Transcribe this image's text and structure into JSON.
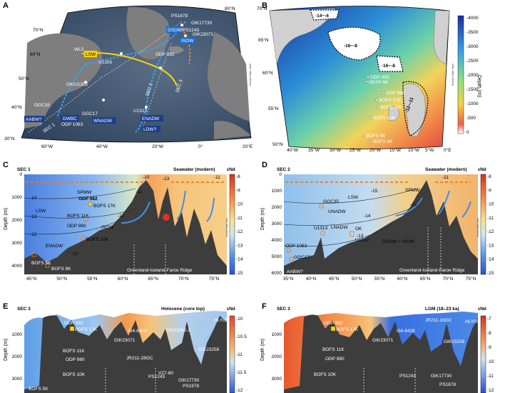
{
  "panels": {
    "A": {
      "letter": "A",
      "lat_labels": [
        "80°N",
        "70°N",
        "60°N",
        "50°N",
        "40°N",
        "30°N"
      ],
      "lon_labels": [
        "60°W",
        "40°W",
        "20°W",
        "0°",
        "20°E"
      ],
      "core_labels": [
        "PS1878",
        "GIK17730",
        "PS1243",
        "GIK23071",
        "ISOW",
        "DSOW",
        "LSW",
        "ODP 982",
        "U1305",
        "OK/U1302",
        "SEC 2",
        "SEC 3",
        "SEC 1",
        "GGC35",
        "DWBC",
        "GGC17",
        "ODP 1063",
        "U1313",
        "WNADW",
        "ENADW",
        "AABW?",
        "LDW?",
        "WL5"
      ],
      "credit": "Ocean Data View"
    },
    "B": {
      "letter": "B",
      "lat_labels": [
        "70°N",
        "65°N",
        "60°N",
        "55°N",
        "50°N"
      ],
      "lon_labels": [
        "40°W",
        "35°W",
        "30°W",
        "25°W",
        "20°W",
        "15°W",
        "10°W",
        "5°W",
        "0°E"
      ],
      "zone_labels": [
        "-14~-6",
        "-16~-8",
        "-16~-8",
        "-12~-11"
      ],
      "core_labels": [
        "ODP 983",
        "NEAP 8K",
        "ODP 980",
        "BOFS 17K",
        "BOFS 11K",
        "BOFS 10K",
        "BOFS 5K",
        "BOFS 8K"
      ],
      "colorbar_title": "Depth (m)",
      "colorbar_ticks": [
        "0",
        "-500",
        "-1000",
        "-1500",
        "-2000",
        "-2500",
        "-3000",
        "-3500",
        "-4000"
      ],
      "credit": "Ocean Data View"
    },
    "C": {
      "letter": "C",
      "title_left": "SEC 1",
      "title_right": "Seawater (modern)",
      "colorbar_label": "εNd",
      "colorbar_ticks": [
        "-8",
        "-9",
        "-10",
        "-11",
        "-12",
        "-13",
        "-14",
        "-15"
      ],
      "y_ticks": [
        "0",
        "1000",
        "2000",
        "3000",
        "4000"
      ],
      "x_ticks": [
        "45°N",
        "50°N",
        "55°N",
        "60°N",
        "65°N",
        "70°N",
        "75°N"
      ],
      "ylabel": "Depth (m)",
      "labels": [
        "SPMW",
        "ODP 982",
        "BOFS 17K",
        "LSW",
        "BOFS 11K",
        "ODP 980",
        "ISOW",
        "BOFS 10K",
        "ENADW",
        "BOFS 5K",
        "BOFS 8K",
        "Greenland-Iceland-Faroe Ridge"
      ],
      "contours": [
        "-14",
        "-13",
        "-12",
        "-11",
        "-10",
        "-13",
        "-11",
        "-12",
        "-13"
      ],
      "credit": "Ocean Data View"
    },
    "D": {
      "letter": "D",
      "title_left": "SEC 2",
      "title_right": "Seawater (modern)",
      "colorbar_label": "εNd",
      "colorbar_ticks": [
        "-8",
        "-9",
        "-10",
        "-11",
        "-12",
        "-13",
        "-14",
        "-15"
      ],
      "y_ticks": [
        "0",
        "1000",
        "2000",
        "3000",
        "4000",
        "5000",
        "6000"
      ],
      "x_ticks": [
        "35°N",
        "40°N",
        "45°N",
        "50°N",
        "55°N",
        "60°N",
        "65°N",
        "70°N",
        "75°N"
      ],
      "ylabel": "Depth (m)",
      "labels": [
        "SPMW",
        "LSW",
        "GGC35",
        "UNADW",
        "U1313",
        "LNADW",
        "OK",
        "U1302",
        "DSOW + ISOW",
        "ODP 1063",
        "GGC17",
        "AABW?",
        "Greenland-Iceland-Faroe Ridge"
      ],
      "contours": [
        "-15",
        "-14",
        "-13",
        "-12",
        "-11"
      ],
      "credit": "Ocean Data View"
    },
    "E": {
      "letter": "E",
      "title_left": "SEC 3",
      "title_right": "Holocene (core top)",
      "colorbar_label": "εNd",
      "colorbar_ticks": [
        "-10",
        "-10.5",
        "-11",
        "-11.5",
        "-12"
      ],
      "y_ticks": [
        "1000",
        "2000",
        "3000"
      ],
      "ylabel": "Depth (m)",
      "labels": [
        "ODP 982",
        "BOFS 17K",
        "BOFS 11K",
        "ODP 980",
        "BOFS 10K",
        "BOFS 5K",
        "GIK23071",
        "JR211-28GC",
        "I04-6428",
        "GIK23262-2",
        "GIK23258",
        "HLY0503",
        "PS1243",
        "V27-60",
        "GIK17730",
        "PS1878"
      ]
    },
    "F": {
      "letter": "F",
      "title_left": "SEC 3",
      "title_right": "LGM (18–23 ka)",
      "colorbar_label": "εNd",
      "colorbar_ticks": [
        "-7",
        "-8",
        "-9",
        "-10",
        "-11",
        "-12"
      ],
      "y_ticks": [
        "1000",
        "2000",
        "3000"
      ],
      "ylabel": "Depth (m)",
      "labels": [
        "ODP 982",
        "BOFS 17K",
        "BOFS 11K",
        "ODP 980",
        "BOFS 10K",
        "GIK23071",
        "I04-6428",
        "JR211-16GC",
        "GIK23258",
        "HLY0503",
        "PS1243",
        "GIK17730",
        "PS1878"
      ]
    }
  }
}
